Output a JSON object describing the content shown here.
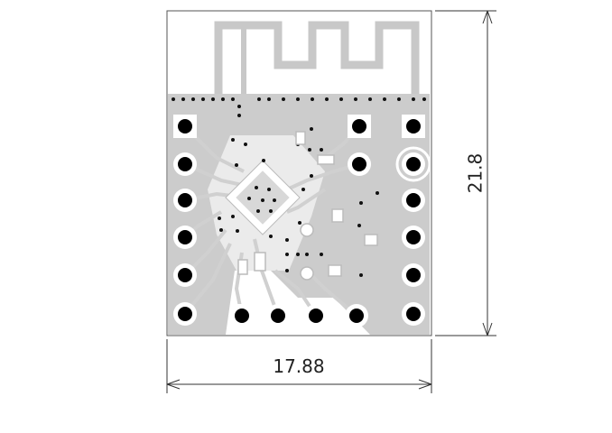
{
  "dimensions": {
    "width_label": "17.88",
    "height_label": "21.8"
  },
  "colors": {
    "board_outline": "#555555",
    "copper_pour": "#cccccc",
    "trace": "#d0d0d0",
    "pad_ring": "#ffffff",
    "drill": "#000000",
    "via": "#111111",
    "dimension_line": "#333333"
  },
  "pads": {
    "left_header_count": 6,
    "right_header_count": 6,
    "bottom_header_count": 4,
    "inner_pins_count": 2
  }
}
